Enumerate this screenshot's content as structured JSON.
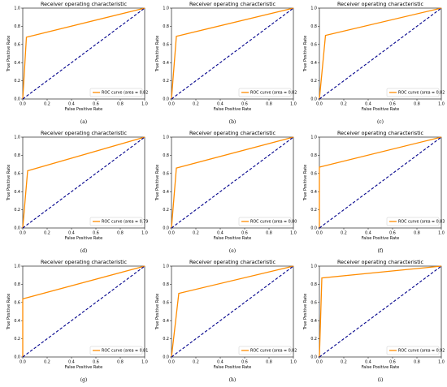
{
  "chart_data": [
    {
      "type": "line",
      "subfigure": "(a)",
      "title": "Receiver operating characteristic",
      "xlabel": "False Positive Rate",
      "ylabel": "True Positive Rate",
      "xlim": [
        0,
        1
      ],
      "ylim": [
        0,
        1
      ],
      "xticks": [
        0.0,
        0.2,
        0.4,
        0.6,
        0.8,
        1.0
      ],
      "yticks": [
        0.0,
        0.2,
        0.4,
        0.6,
        0.8,
        1.0
      ],
      "legend_position": "lower-right",
      "series": [
        {
          "name": "ROC curve (area = 0.8270)",
          "color": "#FF8C00",
          "x": [
            0,
            0.03,
            1
          ],
          "y": [
            0,
            0.68,
            1
          ]
        },
        {
          "name": "",
          "color": "#00008B",
          "style": "dashed",
          "x": [
            0,
            1
          ],
          "y": [
            0,
            1
          ]
        }
      ]
    },
    {
      "type": "line",
      "subfigure": "(b)",
      "title": "Receiver operating characteristic",
      "xlabel": "False Positive Rate",
      "ylabel": "True Positive Rate",
      "xlim": [
        0,
        1
      ],
      "ylim": [
        0,
        1
      ],
      "xticks": [
        0.0,
        0.2,
        0.4,
        0.6,
        0.8,
        1.0
      ],
      "yticks": [
        0.0,
        0.2,
        0.4,
        0.6,
        0.8,
        1.0
      ],
      "legend_position": "lower-right",
      "series": [
        {
          "name": "ROC curve (area = 0.8283)",
          "color": "#FF8C00",
          "x": [
            0,
            0.04,
            1
          ],
          "y": [
            0,
            0.69,
            1
          ]
        },
        {
          "name": "",
          "color": "#00008B",
          "style": "dashed",
          "x": [
            0,
            1
          ],
          "y": [
            0,
            1
          ]
        }
      ]
    },
    {
      "type": "line",
      "subfigure": "(c)",
      "title": "Receiver operating characteristic",
      "xlabel": "False Positive Rate",
      "ylabel": "True Positive Rate",
      "xlim": [
        0,
        1
      ],
      "ylim": [
        0,
        1
      ],
      "xticks": [
        0.0,
        0.2,
        0.4,
        0.6,
        0.8,
        1.0
      ],
      "yticks": [
        0.0,
        0.2,
        0.4,
        0.6,
        0.8,
        1.0
      ],
      "legend_position": "lower-right",
      "series": [
        {
          "name": "ROC curve (area = 0.8242)",
          "color": "#FF8C00",
          "x": [
            0,
            0.05,
            1
          ],
          "y": [
            0,
            0.7,
            1
          ]
        },
        {
          "name": "",
          "color": "#00008B",
          "style": "dashed",
          "x": [
            0,
            1
          ],
          "y": [
            0,
            1
          ]
        }
      ]
    },
    {
      "type": "line",
      "subfigure": "(d)",
      "title": "Receiver operating characteristic",
      "xlabel": "False Positive Rate",
      "ylabel": "True Positive Rate",
      "xlim": [
        0,
        1
      ],
      "ylim": [
        0,
        1
      ],
      "xticks": [
        0.0,
        0.2,
        0.4,
        0.6,
        0.8,
        1.0
      ],
      "yticks": [
        0.0,
        0.2,
        0.4,
        0.6,
        0.8,
        1.0
      ],
      "legend_position": "lower-right",
      "series": [
        {
          "name": "ROC curve (area = 0.7969)",
          "color": "#FF8C00",
          "x": [
            0,
            0.04,
            1
          ],
          "y": [
            0,
            0.63,
            1
          ]
        },
        {
          "name": "",
          "color": "#00008B",
          "style": "dashed",
          "x": [
            0,
            1
          ],
          "y": [
            0,
            1
          ]
        }
      ]
    },
    {
      "type": "line",
      "subfigure": "(e)",
      "title": "Receiver operating characteristic",
      "xlabel": "False Positive Rate",
      "ylabel": "True Positive Rate",
      "xlim": [
        0,
        1
      ],
      "ylim": [
        0,
        1
      ],
      "xticks": [
        0.0,
        0.2,
        0.4,
        0.6,
        0.8,
        1.0
      ],
      "yticks": [
        0.0,
        0.2,
        0.4,
        0.6,
        0.8,
        1.0
      ],
      "legend_position": "lower-right",
      "series": [
        {
          "name": "ROC curve (area = 0.8068)",
          "color": "#FF8C00",
          "x": [
            0,
            0.04,
            1
          ],
          "y": [
            0,
            0.66,
            1
          ]
        },
        {
          "name": "",
          "color": "#00008B",
          "style": "dashed",
          "x": [
            0,
            1
          ],
          "y": [
            0,
            1
          ]
        }
      ]
    },
    {
      "type": "line",
      "subfigure": "(f)",
      "title": "Receiver operating characteristic",
      "xlabel": "False Positive Rate",
      "ylabel": "True Positive Rate",
      "xlim": [
        0,
        1
      ],
      "ylim": [
        0,
        1
      ],
      "xticks": [
        0.0,
        0.2,
        0.4,
        0.6,
        0.8,
        1.0
      ],
      "yticks": [
        0.0,
        0.2,
        0.4,
        0.6,
        0.8,
        1.0
      ],
      "legend_position": "lower-right",
      "series": [
        {
          "name": "ROC curve (area = 0.8333)",
          "color": "#FF8C00",
          "x": [
            0,
            0.0,
            1
          ],
          "y": [
            0,
            0.67,
            1
          ]
        },
        {
          "name": "",
          "color": "#00008B",
          "style": "dashed",
          "x": [
            0,
            1
          ],
          "y": [
            0,
            1
          ]
        }
      ]
    },
    {
      "type": "line",
      "subfigure": "(g)",
      "title": "Receiver operating characteristic",
      "xlabel": "False Positive Rate",
      "ylabel": "True Positive Rate",
      "xlim": [
        0,
        1
      ],
      "ylim": [
        0,
        1
      ],
      "xticks": [
        0.0,
        0.2,
        0.4,
        0.6,
        0.8,
        1.0
      ],
      "yticks": [
        0.0,
        0.2,
        0.4,
        0.6,
        0.8,
        1.0
      ],
      "legend_position": "lower-right",
      "series": [
        {
          "name": "ROC curve (area = 0.8194)",
          "color": "#FF8C00",
          "x": [
            0,
            0.0,
            1
          ],
          "y": [
            0,
            0.64,
            1
          ]
        },
        {
          "name": "",
          "color": "#00008B",
          "style": "dashed",
          "x": [
            0,
            1
          ],
          "y": [
            0,
            1
          ]
        }
      ]
    },
    {
      "type": "line",
      "subfigure": "(h)",
      "title": "Receiver operating characteristic",
      "xlabel": "False Positive Rate",
      "ylabel": "True Positive Rate",
      "xlim": [
        0,
        1
      ],
      "ylim": [
        0,
        1
      ],
      "xticks": [
        0.0,
        0.2,
        0.4,
        0.6,
        0.8,
        1.0
      ],
      "yticks": [
        0.0,
        0.2,
        0.4,
        0.6,
        0.8,
        1.0
      ],
      "legend_position": "lower-right",
      "series": [
        {
          "name": "ROC curve (area = 0.8215)",
          "color": "#FF8C00",
          "x": [
            0,
            0.06,
            1
          ],
          "y": [
            0,
            0.7,
            1
          ]
        },
        {
          "name": "",
          "color": "#00008B",
          "style": "dashed",
          "x": [
            0,
            1
          ],
          "y": [
            0,
            1
          ]
        }
      ]
    },
    {
      "type": "line",
      "subfigure": "(i)",
      "title": "Receiver operating characteristic",
      "xlabel": "False Positive Rate",
      "ylabel": "True Positive Rate",
      "xlim": [
        0,
        1
      ],
      "ylim": [
        0,
        1
      ],
      "xticks": [
        0.0,
        0.2,
        0.4,
        0.6,
        0.8,
        1.0
      ],
      "yticks": [
        0.0,
        0.2,
        0.4,
        0.6,
        0.8,
        1.0
      ],
      "legend_position": "lower-right",
      "series": [
        {
          "name": "ROC curve (area = 0.9223)",
          "color": "#FF8C00",
          "x": [
            0,
            0.02,
            1
          ],
          "y": [
            0,
            0.87,
            1
          ]
        },
        {
          "name": "",
          "color": "#00008B",
          "style": "dashed",
          "x": [
            0,
            1
          ],
          "y": [
            0,
            1
          ]
        }
      ]
    }
  ]
}
